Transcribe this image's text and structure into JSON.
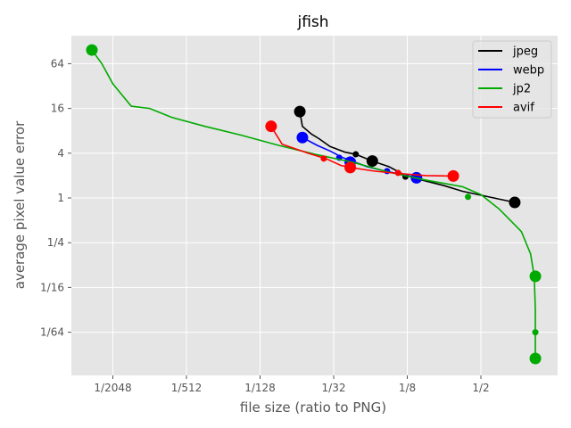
{
  "chart_data": {
    "type": "line",
    "title": "jfish",
    "xlabel": "file size (ratio to PNG)",
    "ylabel": "average pixel value error",
    "xscale": "log2",
    "yscale": "log2",
    "xlim_log2": [
      -12.1,
      1.7
    ],
    "ylim_log2": [
      -7.9,
      7.25
    ],
    "x_ticks": [
      {
        "label": "1/2048",
        "log2": -11
      },
      {
        "label": "1/512",
        "log2": -9
      },
      {
        "label": "1/128",
        "log2": -7
      },
      {
        "label": "1/32",
        "log2": -5
      },
      {
        "label": "1/8",
        "log2": -3
      },
      {
        "label": "1/2",
        "log2": -1
      }
    ],
    "y_ticks": [
      {
        "label": "64",
        "log2": 6
      },
      {
        "label": "16",
        "log2": 4
      },
      {
        "label": "4",
        "log2": 2
      },
      {
        "label": "1",
        "log2": 0
      },
      {
        "label": "1/4",
        "log2": -2
      },
      {
        "label": "1/16",
        "log2": -4
      },
      {
        "label": "1/64",
        "log2": -6
      }
    ],
    "grid": true,
    "legend_position": "upper right",
    "series": [
      {
        "name": "jpeg",
        "color": "#000000",
        "points_log2": [
          [
            -5.92,
            3.86
          ],
          [
            -5.85,
            3.2
          ],
          [
            -5.6,
            2.85
          ],
          [
            -5.4,
            2.65
          ],
          [
            -5.1,
            2.3
          ],
          [
            -4.7,
            2.05
          ],
          [
            -4.4,
            1.95
          ],
          [
            -3.95,
            1.65
          ],
          [
            -3.5,
            1.4
          ],
          [
            -3.1,
            1.05
          ],
          [
            -2.6,
            0.8
          ],
          [
            -2.0,
            0.55
          ],
          [
            -1.5,
            0.3
          ],
          [
            -0.08,
            -0.2
          ]
        ],
        "large_markers_log2": [
          [
            -5.92,
            3.86
          ],
          [
            -3.95,
            1.65
          ],
          [
            -0.08,
            -0.2
          ]
        ],
        "small_markers_log2": [
          [
            -4.4,
            1.95
          ],
          [
            -3.05,
            0.95
          ]
        ]
      },
      {
        "name": "webp",
        "color": "#0000ff",
        "points_log2": [
          [
            -5.85,
            2.7
          ],
          [
            -5.45,
            2.35
          ],
          [
            -5.1,
            2.1
          ],
          [
            -4.75,
            1.8
          ],
          [
            -4.5,
            1.65
          ],
          [
            -4.1,
            1.4
          ],
          [
            -3.6,
            1.2
          ],
          [
            -3.0,
            1.0
          ],
          [
            -2.75,
            0.9
          ]
        ],
        "large_markers_log2": [
          [
            -5.85,
            2.7
          ],
          [
            -4.55,
            1.6
          ],
          [
            -2.75,
            0.9
          ]
        ],
        "small_markers_log2": [
          [
            -4.85,
            1.8
          ],
          [
            -3.55,
            1.2
          ]
        ]
      },
      {
        "name": "jp2",
        "color": "#00aa00",
        "points_log2": [
          [
            -11.57,
            6.61
          ],
          [
            -11.3,
            6.0
          ],
          [
            -11.0,
            5.1
          ],
          [
            -10.5,
            4.1
          ],
          [
            -10.0,
            4.0
          ],
          [
            -9.4,
            3.6
          ],
          [
            -8.5,
            3.2
          ],
          [
            -7.5,
            2.8
          ],
          [
            -6.5,
            2.35
          ],
          [
            -5.5,
            1.95
          ],
          [
            -4.5,
            1.6
          ],
          [
            -3.5,
            1.15
          ],
          [
            -2.5,
            0.8
          ],
          [
            -1.5,
            0.5
          ],
          [
            -1.0,
            0.15
          ],
          [
            -0.5,
            -0.5
          ],
          [
            0.1,
            -1.5
          ],
          [
            0.35,
            -2.5
          ],
          [
            0.45,
            -3.5
          ],
          [
            0.48,
            -5.0
          ],
          [
            0.48,
            -7.17
          ]
        ],
        "large_markers_log2": [
          [
            -11.57,
            6.61
          ],
          [
            0.48,
            -3.5
          ],
          [
            0.48,
            -7.17
          ]
        ],
        "small_markers_log2": [
          [
            -1.35,
            0.05
          ],
          [
            0.48,
            -6.0
          ]
        ]
      },
      {
        "name": "avif",
        "color": "#ff0000",
        "points_log2": [
          [
            -6.7,
            3.2
          ],
          [
            -6.4,
            2.4
          ],
          [
            -5.7,
            2.0
          ],
          [
            -5.2,
            1.75
          ],
          [
            -4.8,
            1.45
          ],
          [
            -4.5,
            1.35
          ],
          [
            -3.9,
            1.2
          ],
          [
            -3.3,
            1.1
          ],
          [
            -2.5,
            1.0
          ],
          [
            -1.75,
            0.98
          ]
        ],
        "large_markers_log2": [
          [
            -6.7,
            3.2
          ],
          [
            -4.55,
            1.36
          ],
          [
            -1.75,
            0.98
          ]
        ],
        "small_markers_log2": [
          [
            -5.27,
            1.76
          ],
          [
            -3.25,
            1.12
          ]
        ]
      }
    ]
  }
}
